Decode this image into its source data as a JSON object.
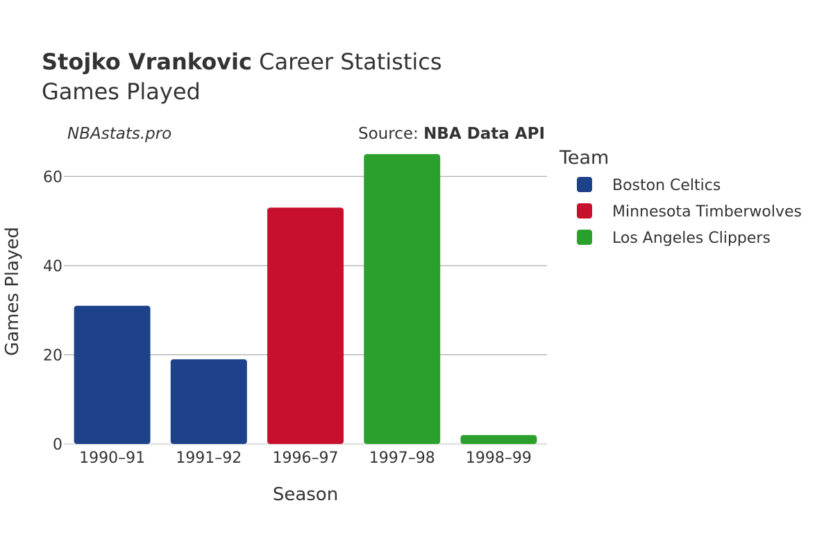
{
  "title": {
    "player": "Stojko Vrankovic",
    "rest": " Career Statistics",
    "subtitle": "Games Played"
  },
  "watermark": "NBAstats.pro",
  "source": {
    "prefix": "Source: ",
    "name": "NBA Data API"
  },
  "legend": {
    "title": "Team",
    "placement": "right",
    "items": [
      {
        "label": "Boston Celtics",
        "color": "#1d428a"
      },
      {
        "label": "Minnesota Timberwolves",
        "color": "#c8102e"
      },
      {
        "label": "Los Angeles Clippers",
        "color": "#2ca02c"
      }
    ]
  },
  "chart_data": {
    "type": "bar",
    "title": "Stojko Vrankovic Career Statistics",
    "subtitle": "Games Played",
    "xlabel": "Season",
    "ylabel": "Games Played",
    "categories": [
      "1990–91",
      "1991–92",
      "1996–97",
      "1997–98",
      "1998–99"
    ],
    "values": [
      31,
      19,
      53,
      65,
      2
    ],
    "teams": [
      "Boston Celtics",
      "Boston Celtics",
      "Minnesota Timberwolves",
      "Los Angeles Clippers",
      "Los Angeles Clippers"
    ],
    "ylim": [
      0,
      70
    ],
    "yticks": [
      0,
      20,
      40,
      60
    ],
    "grid": true
  }
}
